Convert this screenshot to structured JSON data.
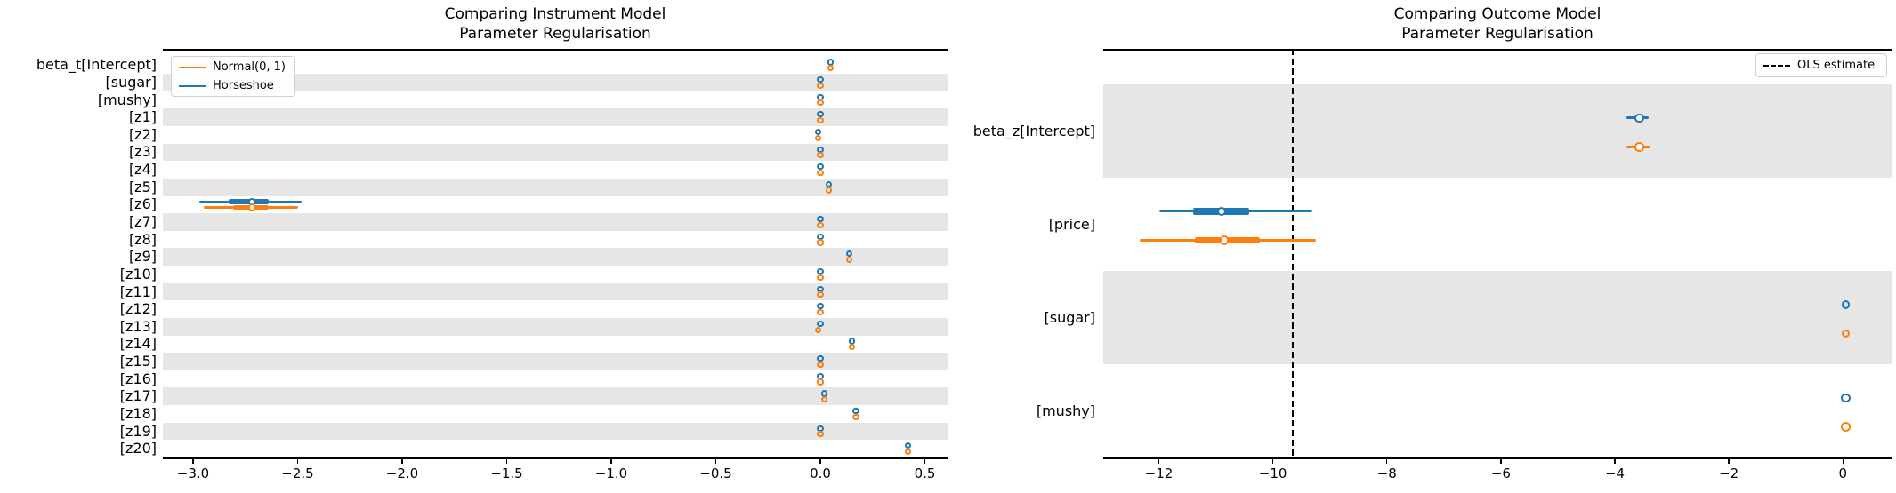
{
  "colors": {
    "normal": "#ff7f0e",
    "horseshoe": "#1f77b4",
    "band_gray": "#e6e6e6",
    "ols_black": "#000000"
  },
  "chart_data": [
    {
      "type": "forest",
      "panel": "instrument_model",
      "title_lines": [
        "Comparing Instrument Model",
        "Parameter Regularisation"
      ],
      "legend_position": "top-left",
      "legend": [
        {
          "label": "Normal(0, 1)",
          "color": "#ff7f0e",
          "dashed": false
        },
        {
          "label": "Horseshoe",
          "color": "#1f77b4",
          "dashed": false
        }
      ],
      "xlim": [
        -3.15,
        0.62
      ],
      "x_ticks": [
        -3.0,
        -2.5,
        -2.0,
        -1.5,
        -1.0,
        -0.5,
        0.0,
        0.5
      ],
      "x_tick_labels": [
        "−3.0",
        "−2.5",
        "−2.0",
        "−1.5",
        "−1.0",
        "−0.5",
        "0.0",
        "0.5"
      ],
      "series_order": [
        "horseshoe",
        "normal"
      ],
      "rows": [
        {
          "label": "beta_t[Intercept]",
          "horseshoe": {
            "mean": 0.05
          },
          "normal": {
            "mean": 0.05
          }
        },
        {
          "label": "[sugar]",
          "horseshoe": {
            "mean": 0.0
          },
          "normal": {
            "mean": 0.0
          }
        },
        {
          "label": "[mushy]",
          "horseshoe": {
            "mean": 0.0
          },
          "normal": {
            "mean": 0.0
          }
        },
        {
          "label": "[z1]",
          "horseshoe": {
            "mean": 0.0
          },
          "normal": {
            "mean": 0.0
          }
        },
        {
          "label": "[z2]",
          "horseshoe": {
            "mean": -0.01
          },
          "normal": {
            "mean": -0.01
          }
        },
        {
          "label": "[z3]",
          "horseshoe": {
            "mean": 0.0
          },
          "normal": {
            "mean": 0.0
          }
        },
        {
          "label": "[z4]",
          "horseshoe": {
            "mean": 0.0
          },
          "normal": {
            "mean": 0.0
          }
        },
        {
          "label": "[z5]",
          "horseshoe": {
            "mean": 0.04
          },
          "normal": {
            "mean": 0.04
          }
        },
        {
          "label": "[z6]",
          "horseshoe": {
            "mean": -2.72,
            "hdi_thin": [
              -2.97,
              -2.48
            ],
            "hdi_thick": [
              -2.83,
              -2.64
            ]
          },
          "normal": {
            "mean": -2.72,
            "hdi_thin": [
              -2.95,
              -2.5
            ],
            "hdi_thick": [
              -2.81,
              -2.64
            ]
          }
        },
        {
          "label": "[z7]",
          "horseshoe": {
            "mean": 0.0
          },
          "normal": {
            "mean": 0.0
          }
        },
        {
          "label": "[z8]",
          "horseshoe": {
            "mean": 0.0
          },
          "normal": {
            "mean": 0.0
          }
        },
        {
          "label": "[z9]",
          "horseshoe": {
            "mean": 0.14
          },
          "normal": {
            "mean": 0.14
          }
        },
        {
          "label": "[z10]",
          "horseshoe": {
            "mean": 0.0
          },
          "normal": {
            "mean": 0.0
          }
        },
        {
          "label": "[z11]",
          "horseshoe": {
            "mean": 0.0
          },
          "normal": {
            "mean": 0.0
          }
        },
        {
          "label": "[z12]",
          "horseshoe": {
            "mean": 0.0
          },
          "normal": {
            "mean": 0.0
          }
        },
        {
          "label": "[z13]",
          "horseshoe": {
            "mean": 0.0
          },
          "normal": {
            "mean": -0.01
          }
        },
        {
          "label": "[z14]",
          "horseshoe": {
            "mean": 0.15
          },
          "normal": {
            "mean": 0.15
          }
        },
        {
          "label": "[z15]",
          "horseshoe": {
            "mean": 0.0
          },
          "normal": {
            "mean": 0.0
          }
        },
        {
          "label": "[z16]",
          "horseshoe": {
            "mean": 0.0
          },
          "normal": {
            "mean": 0.0
          }
        },
        {
          "label": "[z17]",
          "horseshoe": {
            "mean": 0.02
          },
          "normal": {
            "mean": 0.02
          }
        },
        {
          "label": "[z18]",
          "horseshoe": {
            "mean": 0.17
          },
          "normal": {
            "mean": 0.17
          }
        },
        {
          "label": "[z19]",
          "horseshoe": {
            "mean": 0.0
          },
          "normal": {
            "mean": 0.0
          }
        },
        {
          "label": "[z20]",
          "horseshoe": {
            "mean": 0.42
          },
          "normal": {
            "mean": 0.42
          }
        }
      ]
    },
    {
      "type": "forest",
      "panel": "outcome_model",
      "title_lines": [
        "Comparing Outcome Model",
        "Parameter Regularisation"
      ],
      "legend_position": "top-right",
      "legend": [
        {
          "label": "OLS estimate",
          "color": "#000000",
          "dashed": true
        }
      ],
      "xlim": [
        -12.97,
        0.85
      ],
      "x_ticks": [
        -12,
        -10,
        -8,
        -6,
        -4,
        -2,
        0
      ],
      "x_tick_labels": [
        "−12",
        "−10",
        "−8",
        "−6",
        "−4",
        "−2",
        "0"
      ],
      "vline": -9.65,
      "series_order": [
        "horseshoe",
        "normal"
      ],
      "rows": [
        {
          "label": "beta_z[Intercept]",
          "horseshoe": {
            "mean": -3.57,
            "hdi_thin": [
              -3.79,
              -3.4
            ]
          },
          "normal": {
            "mean": -3.57,
            "hdi_thin": [
              -3.8,
              -3.38
            ]
          }
        },
        {
          "label": "[price]",
          "horseshoe": {
            "mean": -10.9,
            "hdi_thin": [
              -11.99,
              -9.31
            ],
            "hdi_thick": [
              -11.4,
              -10.41
            ]
          },
          "normal": {
            "mean": -10.85,
            "hdi_thin": [
              -12.34,
              -9.25
            ],
            "hdi_thick": [
              -11.37,
              -10.23
            ]
          }
        },
        {
          "label": "[sugar]",
          "horseshoe": {
            "mean": 0.05
          },
          "normal": {
            "mean": 0.05
          }
        },
        {
          "label": "[mushy]",
          "horseshoe": {
            "mean": 0.05,
            "hdi_thin": [
              -0.03,
              0.13
            ]
          },
          "normal": {
            "mean": 0.05,
            "hdi_thin": [
              -0.03,
              0.13
            ]
          }
        }
      ]
    }
  ]
}
